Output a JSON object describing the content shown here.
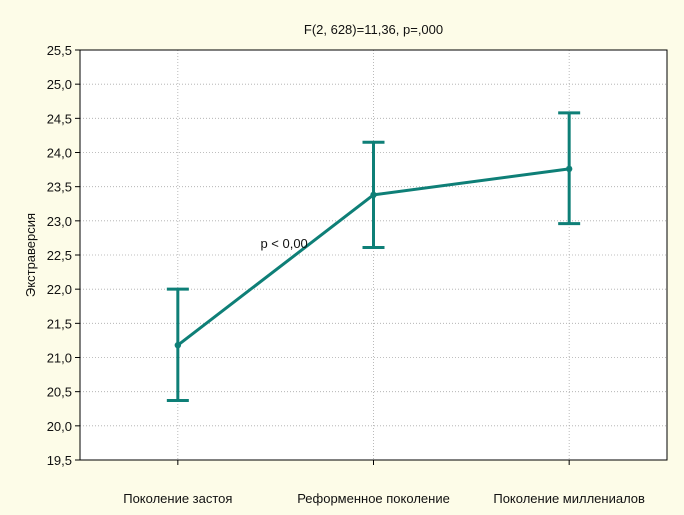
{
  "chart_data": {
    "type": "line",
    "title": "F(2, 628)=11,36, p=,000",
    "ylabel": "Экстраверсия",
    "xlabel": "",
    "categories": [
      "Поколение застоя",
      "Реформенное поколение",
      "Поколение миллениалов"
    ],
    "series": [
      {
        "values": [
          21.18,
          23.38,
          23.76
        ],
        "lower": [
          20.37,
          22.61,
          22.96
        ],
        "upper": [
          22.0,
          24.15,
          24.58
        ]
      }
    ],
    "ylim": [
      19.5,
      25.5
    ],
    "yticks": [
      "19,5",
      "20,0",
      "20,5",
      "21,0",
      "21,5",
      "22,0",
      "22,5",
      "23,0",
      "23,5",
      "24,0",
      "24,5",
      "25,0",
      "25,5"
    ],
    "grid": true,
    "annotations": [
      {
        "text": "p < 0,00",
        "x": 0.55,
        "y": 22.6
      }
    ],
    "colors": {
      "series": "#0e7f77",
      "background": "#fdfce8",
      "plot_background": "#ffffff",
      "grid": "#aaaaaa"
    }
  }
}
